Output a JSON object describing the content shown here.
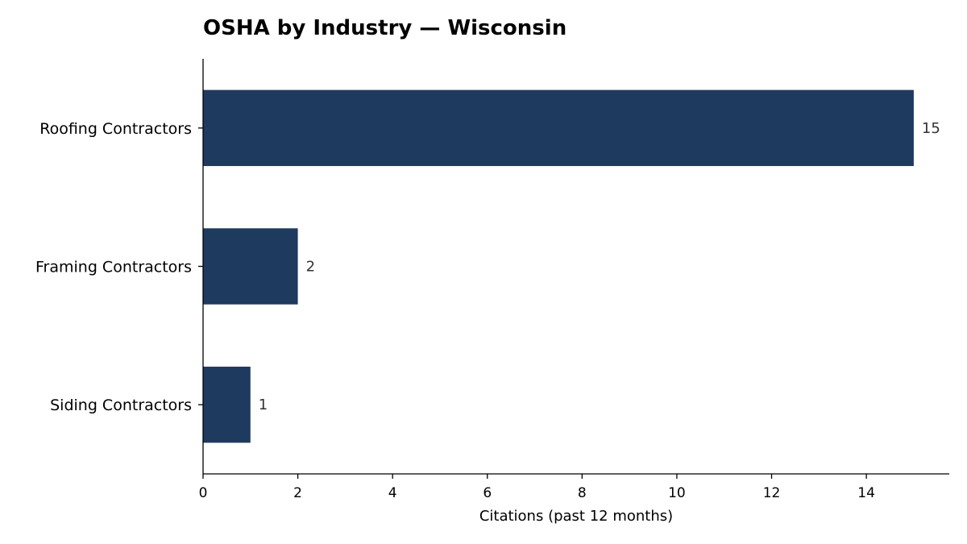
{
  "chart_data": {
    "type": "bar",
    "orientation": "horizontal",
    "title": "OSHA by Industry — Wisconsin",
    "xlabel": "Citations (past 12 months)",
    "ylabel": "",
    "categories": [
      "Roofing Contractors",
      "Framing Contractors",
      "Siding Contractors"
    ],
    "values": [
      15,
      2,
      1
    ],
    "xlim": [
      0,
      15.75
    ],
    "xticks": [
      0,
      2,
      4,
      6,
      8,
      10,
      12,
      14
    ],
    "grid": false,
    "legend": "none",
    "bar_color": "#1f3a5f"
  }
}
